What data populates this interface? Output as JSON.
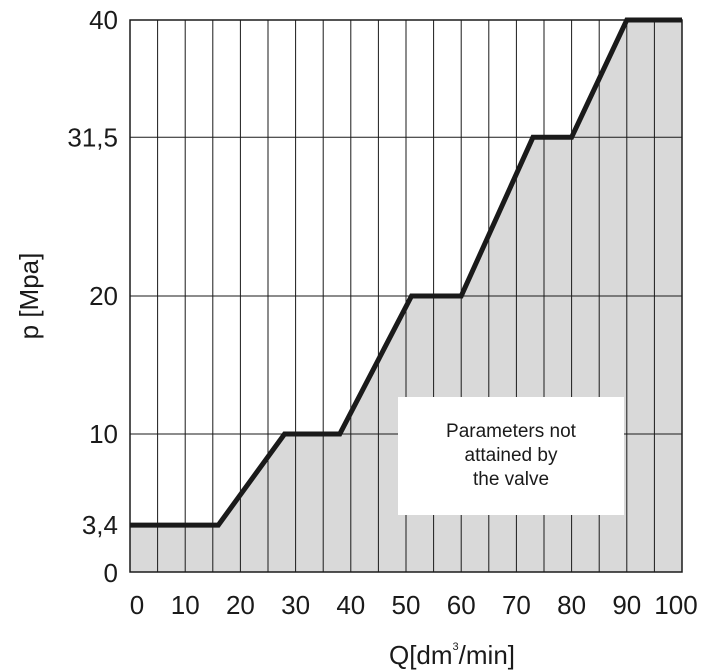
{
  "chart_data": {
    "type": "area",
    "xlabel_main": "Q[dm",
    "xlabel_sup": "3",
    "xlabel_tail": "/min]",
    "ylabel": "p [Mpa]",
    "xlim": [
      0,
      100
    ],
    "ylim": [
      0,
      40
    ],
    "x_ticks": [
      {
        "v": 0,
        "label": "0"
      },
      {
        "v": 10,
        "label": "10"
      },
      {
        "v": 20,
        "label": "20"
      },
      {
        "v": 30,
        "label": "30"
      },
      {
        "v": 40,
        "label": "40"
      },
      {
        "v": 50,
        "label": "50"
      },
      {
        "v": 60,
        "label": "60"
      },
      {
        "v": 70,
        "label": "70"
      },
      {
        "v": 80,
        "label": "80"
      },
      {
        "v": 90,
        "label": "90"
      },
      {
        "v": 100,
        "label": "100"
      }
    ],
    "y_ticks": [
      {
        "v": 0,
        "label": "0"
      },
      {
        "v": 3.4,
        "label": "3,4"
      },
      {
        "v": 10,
        "label": "10"
      },
      {
        "v": 20,
        "label": "20"
      },
      {
        "v": 31.5,
        "label": "31,5"
      },
      {
        "v": 40,
        "label": "40"
      }
    ],
    "series": [
      {
        "x": [
          0,
          16,
          28,
          38,
          51,
          60,
          73,
          80,
          90,
          100
        ],
        "y": [
          3.4,
          3.4,
          10,
          10,
          20,
          20,
          31.5,
          31.5,
          40,
          40
        ]
      }
    ],
    "annotation": "Parameters not attained by the valve",
    "annotation_lines": [
      "Parameters not",
      "attained by",
      "the valve"
    ],
    "fill_color": "#d9d9d9",
    "line_color": "#1a1a1a",
    "grid": true
  }
}
